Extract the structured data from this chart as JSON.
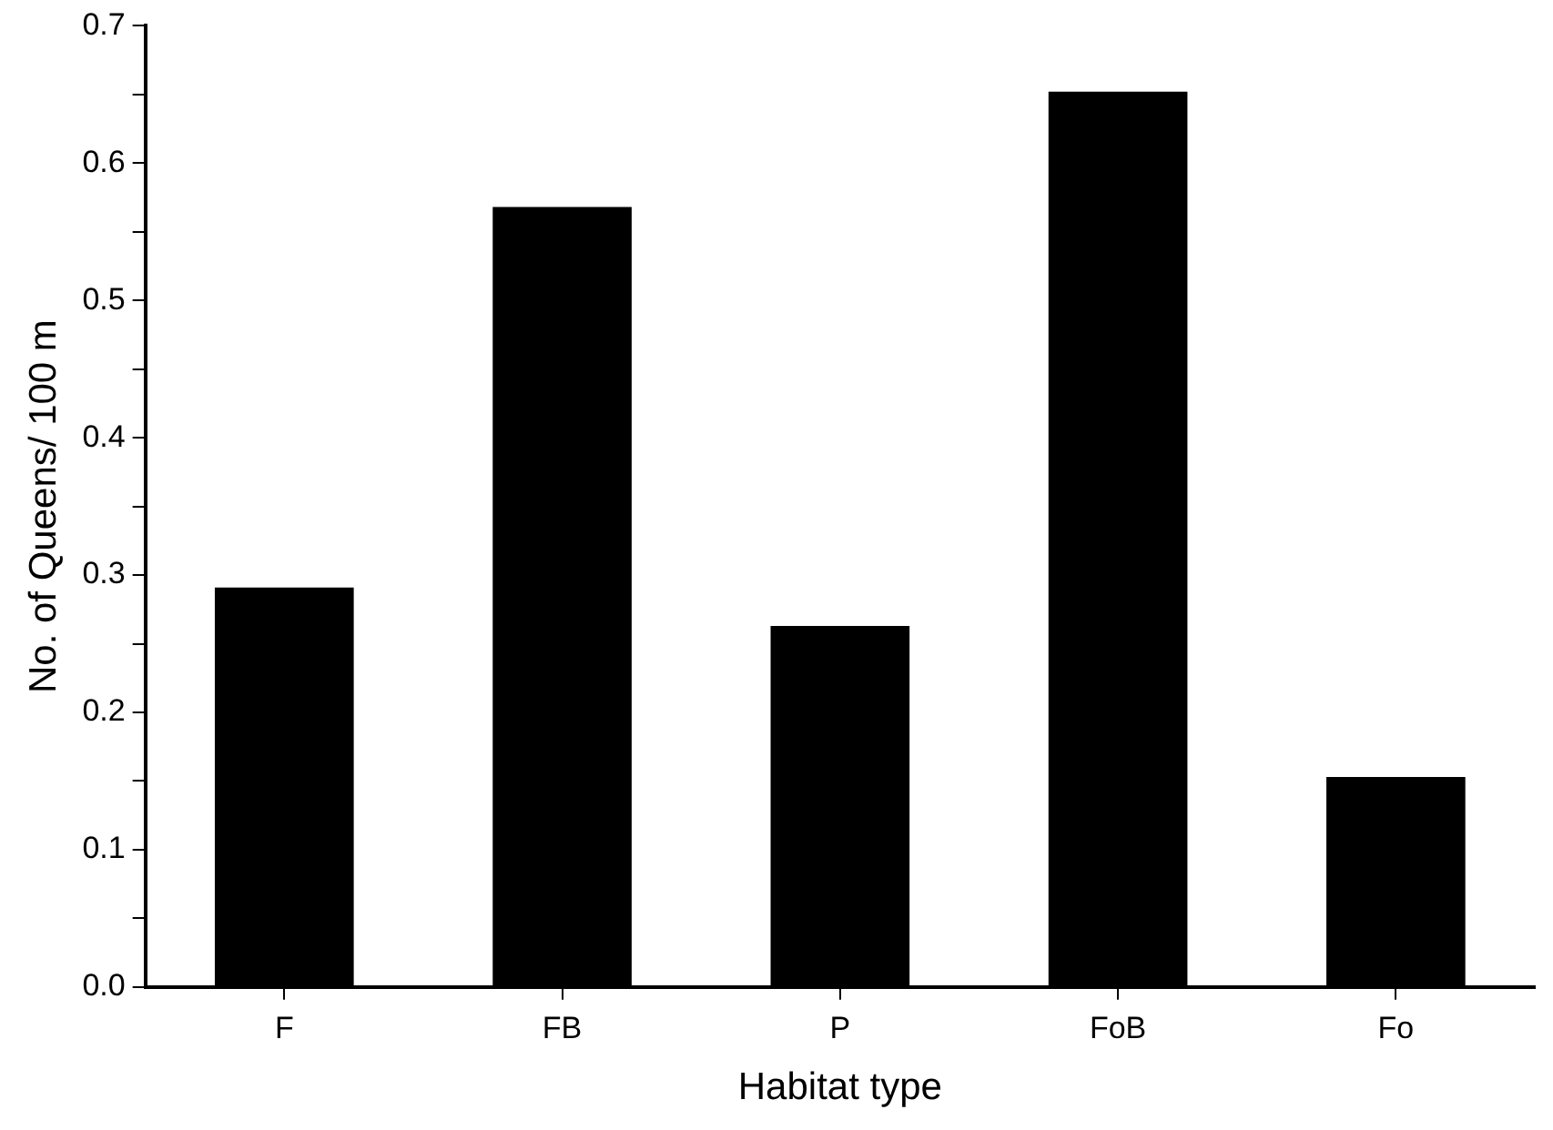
{
  "chart_data": {
    "type": "bar",
    "xlabel": "Habitat type",
    "ylabel": "No. of Queens/ 100 m",
    "categories": [
      "F",
      "FB",
      "P",
      "FoB",
      "Fo"
    ],
    "values": [
      0.291,
      0.568,
      0.263,
      0.652,
      0.153
    ],
    "color": "#000000",
    "ylim": [
      0,
      0.7
    ],
    "yticks": [
      {
        "value": 0,
        "label": "0.0"
      },
      {
        "value": 0.05,
        "label": null
      },
      0.1,
      {
        "value": 0.15,
        "label": null
      },
      0.2,
      {
        "value": 0.25,
        "label": null
      },
      0.3,
      {
        "value": 0.35,
        "label": null
      },
      0.4,
      {
        "value": 0.45,
        "label": null
      },
      0.5,
      {
        "value": 0.55,
        "label": null
      },
      0.6,
      {
        "value": 0.65,
        "label": null
      },
      0.7
    ],
    "grid": false,
    "legend": false
  }
}
